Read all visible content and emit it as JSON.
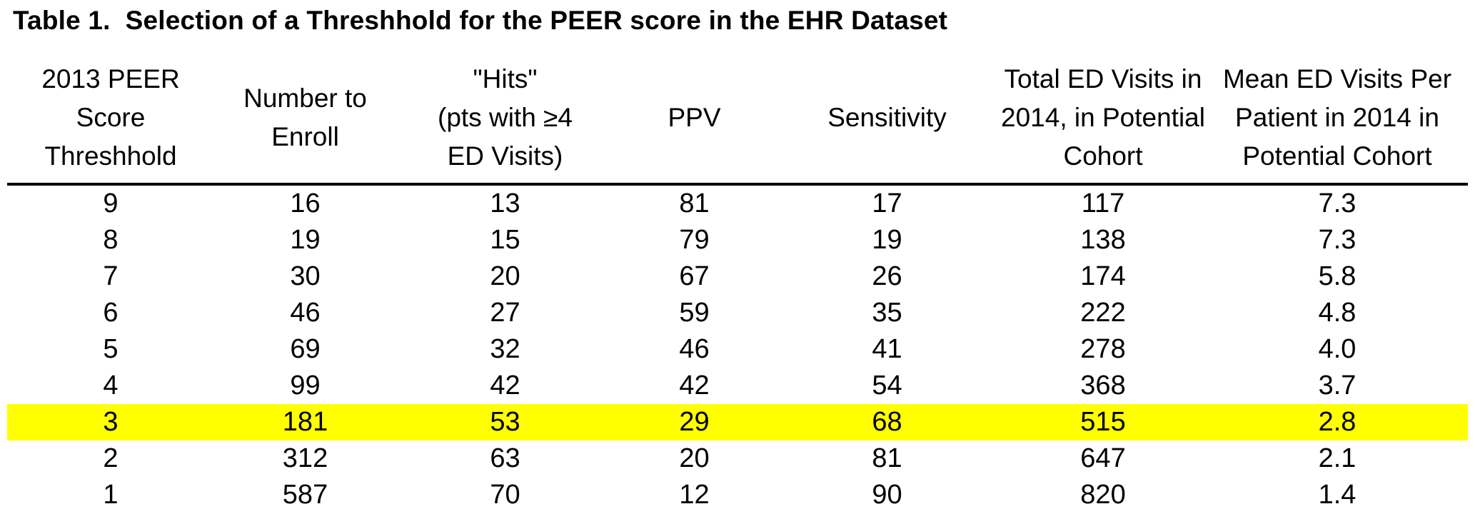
{
  "title": "Table 1.  Selection of a Threshhold for the PEER score in the EHR Dataset",
  "table": {
    "header_lines": [
      [
        "2013 PEER",
        "Score",
        "Threshhold"
      ],
      [
        "Number to",
        "Enroll"
      ],
      [
        "\"Hits\"",
        "(pts with ≥4",
        "ED Visits)"
      ],
      [
        "PPV"
      ],
      [
        "Sensitivity"
      ],
      [
        "Total ED Visits in",
        "2014, in Potential",
        "Cohort"
      ],
      [
        "Mean ED Visits Per",
        "Patient in 2014 in",
        "Potential Cohort"
      ]
    ],
    "rows": [
      [
        "9",
        "16",
        "13",
        "81",
        "17",
        "117",
        "7.3"
      ],
      [
        "8",
        "19",
        "15",
        "79",
        "19",
        "138",
        "7.3"
      ],
      [
        "7",
        "30",
        "20",
        "67",
        "26",
        "174",
        "5.8"
      ],
      [
        "6",
        "46",
        "27",
        "59",
        "35",
        "222",
        "4.8"
      ],
      [
        "5",
        "69",
        "32",
        "46",
        "41",
        "278",
        "4.0"
      ],
      [
        "4",
        "99",
        "42",
        "42",
        "54",
        "368",
        "3.7"
      ],
      [
        "3",
        "181",
        "53",
        "29",
        "68",
        "515",
        "2.8"
      ],
      [
        "2",
        "312",
        "63",
        "20",
        "81",
        "647",
        "2.1"
      ],
      [
        "1",
        "587",
        "70",
        "12",
        "90",
        "820",
        "1.4"
      ]
    ],
    "highlighted_row_index": 6,
    "highlight_color": "#FFFF00",
    "text_color": "#000000",
    "rule_color": "#000000"
  }
}
